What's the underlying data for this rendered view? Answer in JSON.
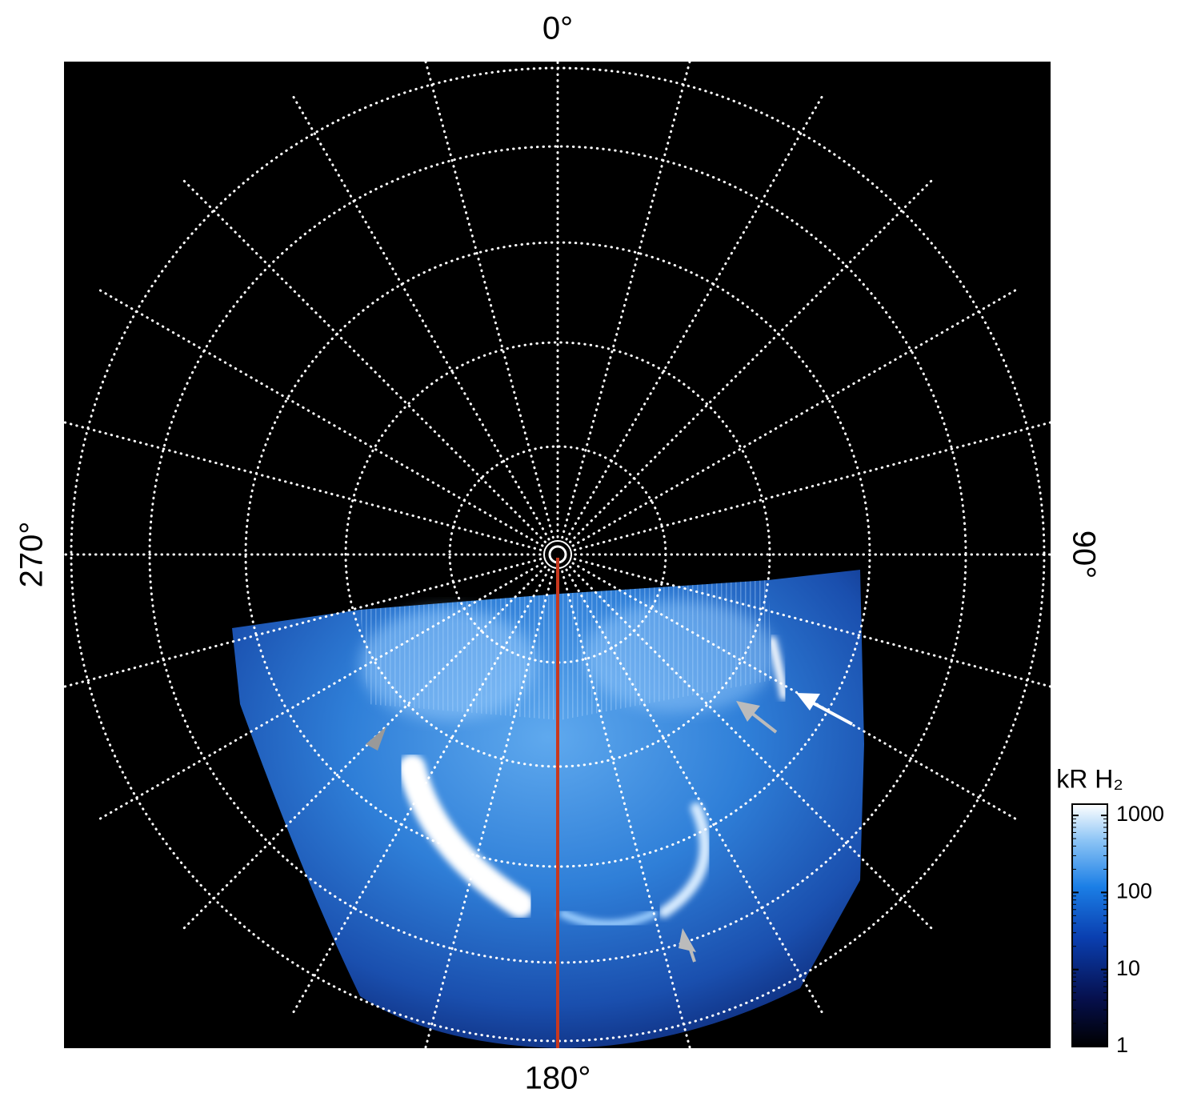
{
  "chart_data": {
    "type": "polar",
    "longitude_labels": [
      {
        "value": 0,
        "label": "0°"
      },
      {
        "value": 90,
        "label": "90°"
      },
      {
        "value": 180,
        "label": "180°"
      },
      {
        "value": 270,
        "label": "270°"
      }
    ],
    "grid": true,
    "reference_line_color": "#c8381e",
    "colorbar": {
      "title": "kR H₂",
      "scale": "log",
      "lim": [
        1,
        1400
      ],
      "ticks": [
        1,
        10,
        100,
        1000
      ]
    }
  }
}
